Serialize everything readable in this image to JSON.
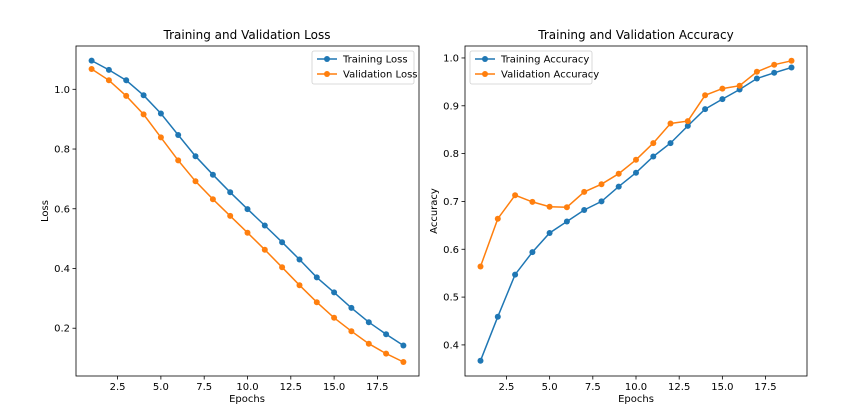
{
  "chart_data": [
    {
      "type": "line",
      "title": "Training and Validation Loss",
      "xlabel": "Epochs",
      "ylabel": "Loss",
      "xlim": [
        0.1,
        19.9
      ],
      "ylim": [
        0.04,
        1.145
      ],
      "xticks": [
        2.5,
        5.0,
        7.5,
        10.0,
        12.5,
        15.0,
        17.5
      ],
      "xtick_labels": [
        "2.5",
        "5.0",
        "7.5",
        "10.0",
        "12.5",
        "15.0",
        "17.5"
      ],
      "yticks": [
        0.2,
        0.4,
        0.6,
        0.8,
        1.0
      ],
      "ytick_labels": [
        "0.2",
        "0.4",
        "0.6",
        "0.8",
        "1.0"
      ],
      "grid": false,
      "legend_position": "top-right",
      "x": [
        1,
        2,
        3,
        4,
        5,
        6,
        7,
        8,
        9,
        10,
        11,
        12,
        13,
        14,
        15,
        16,
        17,
        18,
        19
      ],
      "series": [
        {
          "name": "Training Loss",
          "color": "#1f77b4",
          "values": [
            1.096,
            1.065,
            1.03,
            0.98,
            0.919,
            0.847,
            0.776,
            0.714,
            0.655,
            0.599,
            0.544,
            0.488,
            0.43,
            0.37,
            0.32,
            0.268,
            0.22,
            0.18,
            0.142
          ]
        },
        {
          "name": "Validation Loss",
          "color": "#ff7f0e",
          "values": [
            1.068,
            1.03,
            0.978,
            0.916,
            0.839,
            0.762,
            0.692,
            0.632,
            0.576,
            0.52,
            0.463,
            0.404,
            0.344,
            0.287,
            0.235,
            0.19,
            0.148,
            0.115,
            0.087
          ]
        }
      ]
    },
    {
      "type": "line",
      "title": "Training and Validation Accuracy",
      "xlabel": "Epochs",
      "ylabel": "Accuracy",
      "xlim": [
        0.1,
        19.9
      ],
      "ylim": [
        0.335,
        1.025
      ],
      "xticks": [
        2.5,
        5.0,
        7.5,
        10.0,
        12.5,
        15.0,
        17.5
      ],
      "xtick_labels": [
        "2.5",
        "5.0",
        "7.5",
        "10.0",
        "12.5",
        "15.0",
        "17.5"
      ],
      "yticks": [
        0.4,
        0.5,
        0.6,
        0.7,
        0.8,
        0.9,
        1.0
      ],
      "ytick_labels": [
        "0.4",
        "0.5",
        "0.6",
        "0.7",
        "0.8",
        "0.9",
        "1.0"
      ],
      "grid": false,
      "legend_position": "top-left",
      "x": [
        1,
        2,
        3,
        4,
        5,
        6,
        7,
        8,
        9,
        10,
        11,
        12,
        13,
        14,
        15,
        16,
        17,
        18,
        19
      ],
      "series": [
        {
          "name": "Training Accuracy",
          "color": "#1f77b4",
          "values": [
            0.367,
            0.459,
            0.547,
            0.594,
            0.634,
            0.658,
            0.682,
            0.7,
            0.731,
            0.76,
            0.794,
            0.822,
            0.858,
            0.893,
            0.914,
            0.934,
            0.957,
            0.969,
            0.98
          ]
        },
        {
          "name": "Validation Accuracy",
          "color": "#ff7f0e",
          "values": [
            0.564,
            0.664,
            0.713,
            0.699,
            0.689,
            0.688,
            0.72,
            0.736,
            0.758,
            0.787,
            0.822,
            0.863,
            0.868,
            0.922,
            0.936,
            0.942,
            0.971,
            0.986,
            0.994
          ]
        }
      ]
    }
  ]
}
